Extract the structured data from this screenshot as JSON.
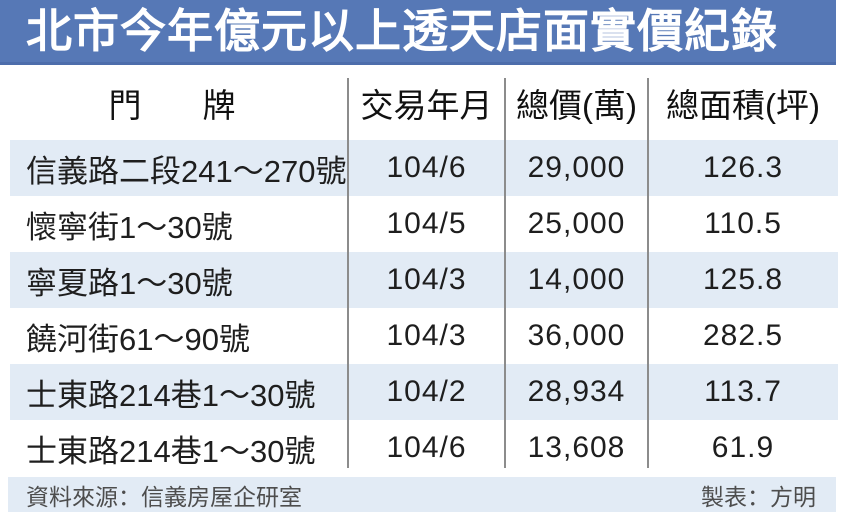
{
  "title": "北市今年億元以上透天店面實價紀錄",
  "table": {
    "headers": [
      "門　牌",
      "交易年月",
      "總價(萬)",
      "總面積(坪)"
    ],
    "rows": [
      [
        "信義路二段241～270號",
        "104/6",
        "29,000",
        "126.3"
      ],
      [
        "懷寧街1～30號",
        "104/5",
        "25,000",
        "110.5"
      ],
      [
        "寧夏路1～30號",
        "104/3",
        "14,000",
        "125.8"
      ],
      [
        "饒河街61～90號",
        "104/3",
        "36,000",
        "282.5"
      ],
      [
        "士東路214巷1～30號",
        "104/2",
        "28,934",
        "113.7"
      ],
      [
        "士東路214巷1～30號",
        "104/6",
        "13,608",
        "61.9"
      ]
    ]
  },
  "footer": {
    "source": "資料來源：信義房屋企研室",
    "credit": "製表：方明"
  },
  "colors": {
    "title_bg": "#5678b6",
    "title_border": "#4d6dab",
    "row_alt_bg": "#e2ebf5",
    "divider": "#8c8c8c",
    "text": "#1e1e1e",
    "footer_text": "#4d4d4d"
  },
  "chart_data": {
    "type": "table",
    "title": "北市今年億元以上透天店面實價紀錄",
    "columns": [
      "門牌",
      "交易年月",
      "總價(萬)",
      "總面積(坪)"
    ],
    "rows": [
      {
        "address": "信義路二段241～270號",
        "date": "104/6",
        "price_wan": 29000,
        "area_ping": 126.3
      },
      {
        "address": "懷寧街1～30號",
        "date": "104/5",
        "price_wan": 25000,
        "area_ping": 110.5
      },
      {
        "address": "寧夏路1～30號",
        "date": "104/3",
        "price_wan": 14000,
        "area_ping": 125.8
      },
      {
        "address": "饒河街61～90號",
        "date": "104/3",
        "price_wan": 36000,
        "area_ping": 282.5
      },
      {
        "address": "士東路214巷1～30號",
        "date": "104/2",
        "price_wan": 28934,
        "area_ping": 113.7
      },
      {
        "address": "士東路214巷1～30號",
        "date": "104/6",
        "price_wan": 13608,
        "area_ping": 61.9
      }
    ],
    "source": "信義房屋企研室",
    "credit": "方明"
  }
}
